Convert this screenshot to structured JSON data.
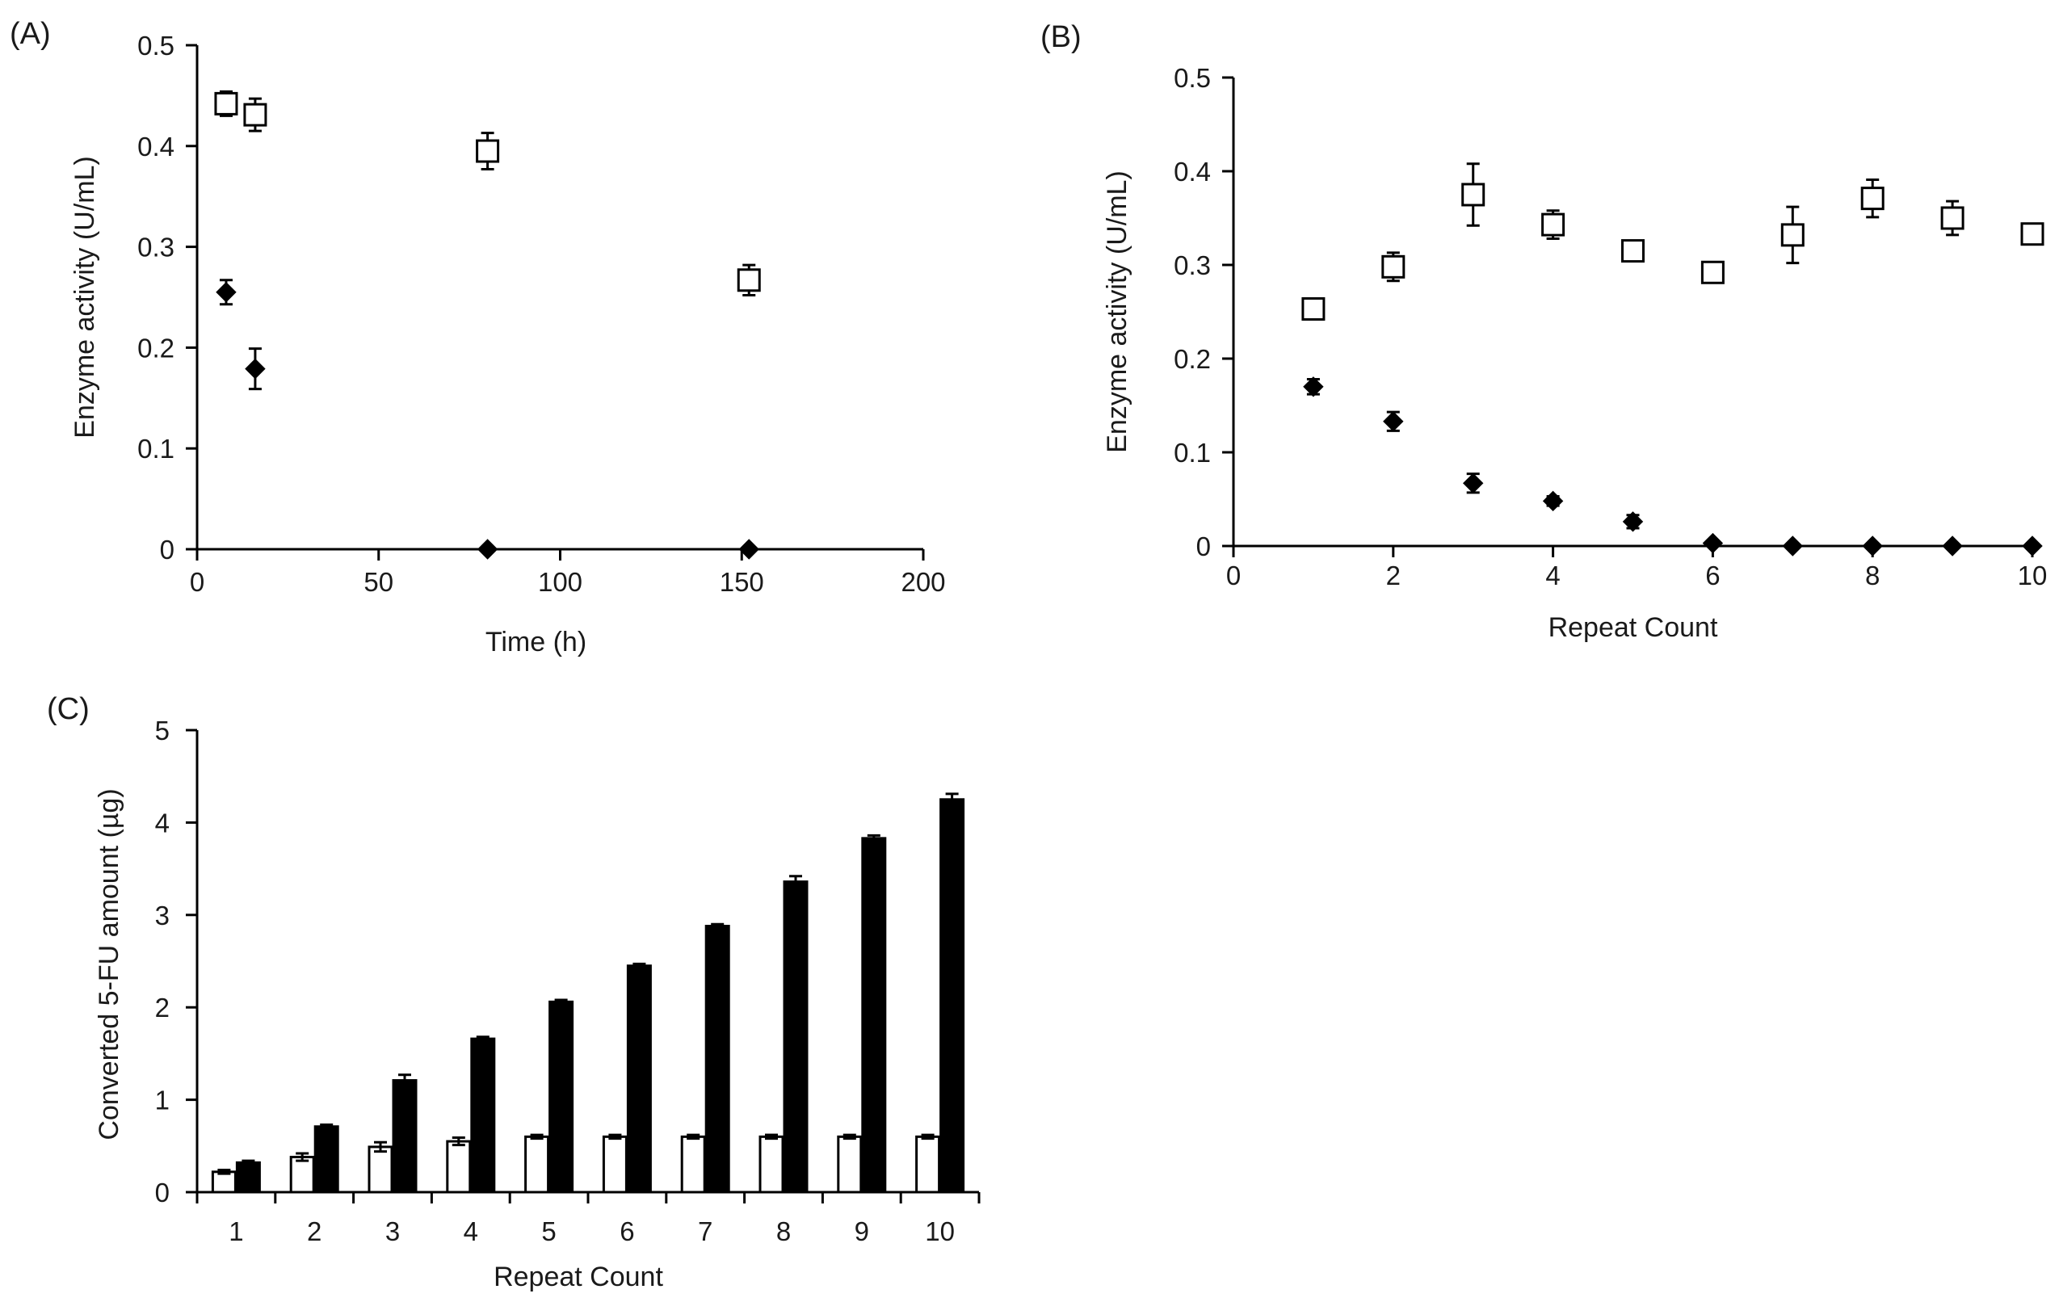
{
  "figure": {
    "panels": [
      "(A)",
      "(B)",
      "(C)"
    ]
  },
  "chart_data": [
    {
      "id": "A",
      "type": "scatter",
      "panel_label": "(A)",
      "xlabel": "Time (h)",
      "ylabel": "Enzyme activity (U/mL)",
      "xlim": [
        0,
        200
      ],
      "ylim": [
        0,
        0.5
      ],
      "xticks": [
        0,
        50,
        100,
        150,
        200
      ],
      "yticks": [
        0,
        0.1,
        0.2,
        0.3,
        0.4,
        0.5
      ],
      "xtick_labels": [
        "0",
        "50",
        "100",
        "150",
        "200"
      ],
      "ytick_labels": [
        "0",
        "0.1",
        "0.2",
        "0.3",
        "0.4",
        "0.5"
      ],
      "grid": false,
      "series": [
        {
          "name": "open-square",
          "marker": "square-open",
          "x": [
            8,
            16,
            80,
            152
          ],
          "y": [
            0.442,
            0.431,
            0.395,
            0.267
          ],
          "err": [
            0.012,
            0.016,
            0.018,
            0.015
          ]
        },
        {
          "name": "filled-diamond",
          "marker": "diamond-filled",
          "x": [
            8,
            16,
            80,
            152
          ],
          "y": [
            0.255,
            0.179,
            0.0,
            0.0
          ],
          "err": [
            0.012,
            0.02,
            0.0,
            0.0
          ]
        }
      ]
    },
    {
      "id": "B",
      "type": "scatter",
      "panel_label": "(B)",
      "xlabel": "Repeat Count",
      "ylabel": "Enzyme activity (U/mL)",
      "xlim": [
        0,
        10
      ],
      "ylim": [
        0,
        0.5
      ],
      "xticks": [
        0,
        2,
        4,
        6,
        8,
        10
      ],
      "yticks": [
        0,
        0.1,
        0.2,
        0.3,
        0.4,
        0.5
      ],
      "xtick_labels": [
        "0",
        "2",
        "4",
        "6",
        "8",
        "10"
      ],
      "ytick_labels": [
        "0",
        "0.1",
        "0.2",
        "0.3",
        "0.4",
        "0.5"
      ],
      "grid": false,
      "series": [
        {
          "name": "open-square",
          "marker": "square-open",
          "x": [
            1,
            2,
            3,
            4,
            5,
            6,
            7,
            8,
            9,
            10
          ],
          "y": [
            0.253,
            0.298,
            0.375,
            0.343,
            0.315,
            0.292,
            0.332,
            0.371,
            0.35,
            0.333
          ],
          "err": [
            0.0,
            0.015,
            0.033,
            0.015,
            0.01,
            0.008,
            0.03,
            0.02,
            0.018,
            0.009
          ]
        },
        {
          "name": "filled-diamond",
          "marker": "diamond-filled",
          "x": [
            1,
            2,
            3,
            4,
            5,
            6,
            7,
            8,
            9,
            10
          ],
          "y": [
            0.17,
            0.133,
            0.067,
            0.048,
            0.026,
            0.003,
            0.0,
            0.0,
            0.0,
            0.0
          ],
          "err": [
            0.008,
            0.01,
            0.01,
            0.005,
            0.007,
            0.0,
            0.0,
            0.0,
            0.0,
            0.0
          ]
        }
      ]
    },
    {
      "id": "C",
      "type": "bar",
      "panel_label": "(C)",
      "xlabel": "Repeat Count",
      "ylabel": "Converted 5-FU amount  (µg)",
      "categories": [
        "1",
        "2",
        "3",
        "4",
        "5",
        "6",
        "7",
        "8",
        "9",
        "10"
      ],
      "ylim": [
        0,
        5
      ],
      "yticks": [
        0,
        1,
        2,
        3,
        4,
        5
      ],
      "ytick_labels": [
        "0",
        "1",
        "2",
        "3",
        "4",
        "5"
      ],
      "grid": false,
      "series": [
        {
          "name": "open-bar",
          "color": "#ffffff",
          "values": [
            0.22,
            0.38,
            0.49,
            0.55,
            0.6,
            0.6,
            0.6,
            0.6,
            0.6,
            0.6
          ],
          "err": [
            0.02,
            0.04,
            0.05,
            0.04,
            0.02,
            0.02,
            0.02,
            0.02,
            0.02,
            0.02
          ]
        },
        {
          "name": "filled-bar",
          "color": "#000000",
          "values": [
            0.32,
            0.71,
            1.21,
            1.66,
            2.06,
            2.45,
            2.88,
            3.36,
            3.83,
            4.25
          ],
          "err": [
            0.02,
            0.02,
            0.06,
            0.02,
            0.02,
            0.02,
            0.02,
            0.06,
            0.03,
            0.06
          ]
        }
      ]
    }
  ]
}
